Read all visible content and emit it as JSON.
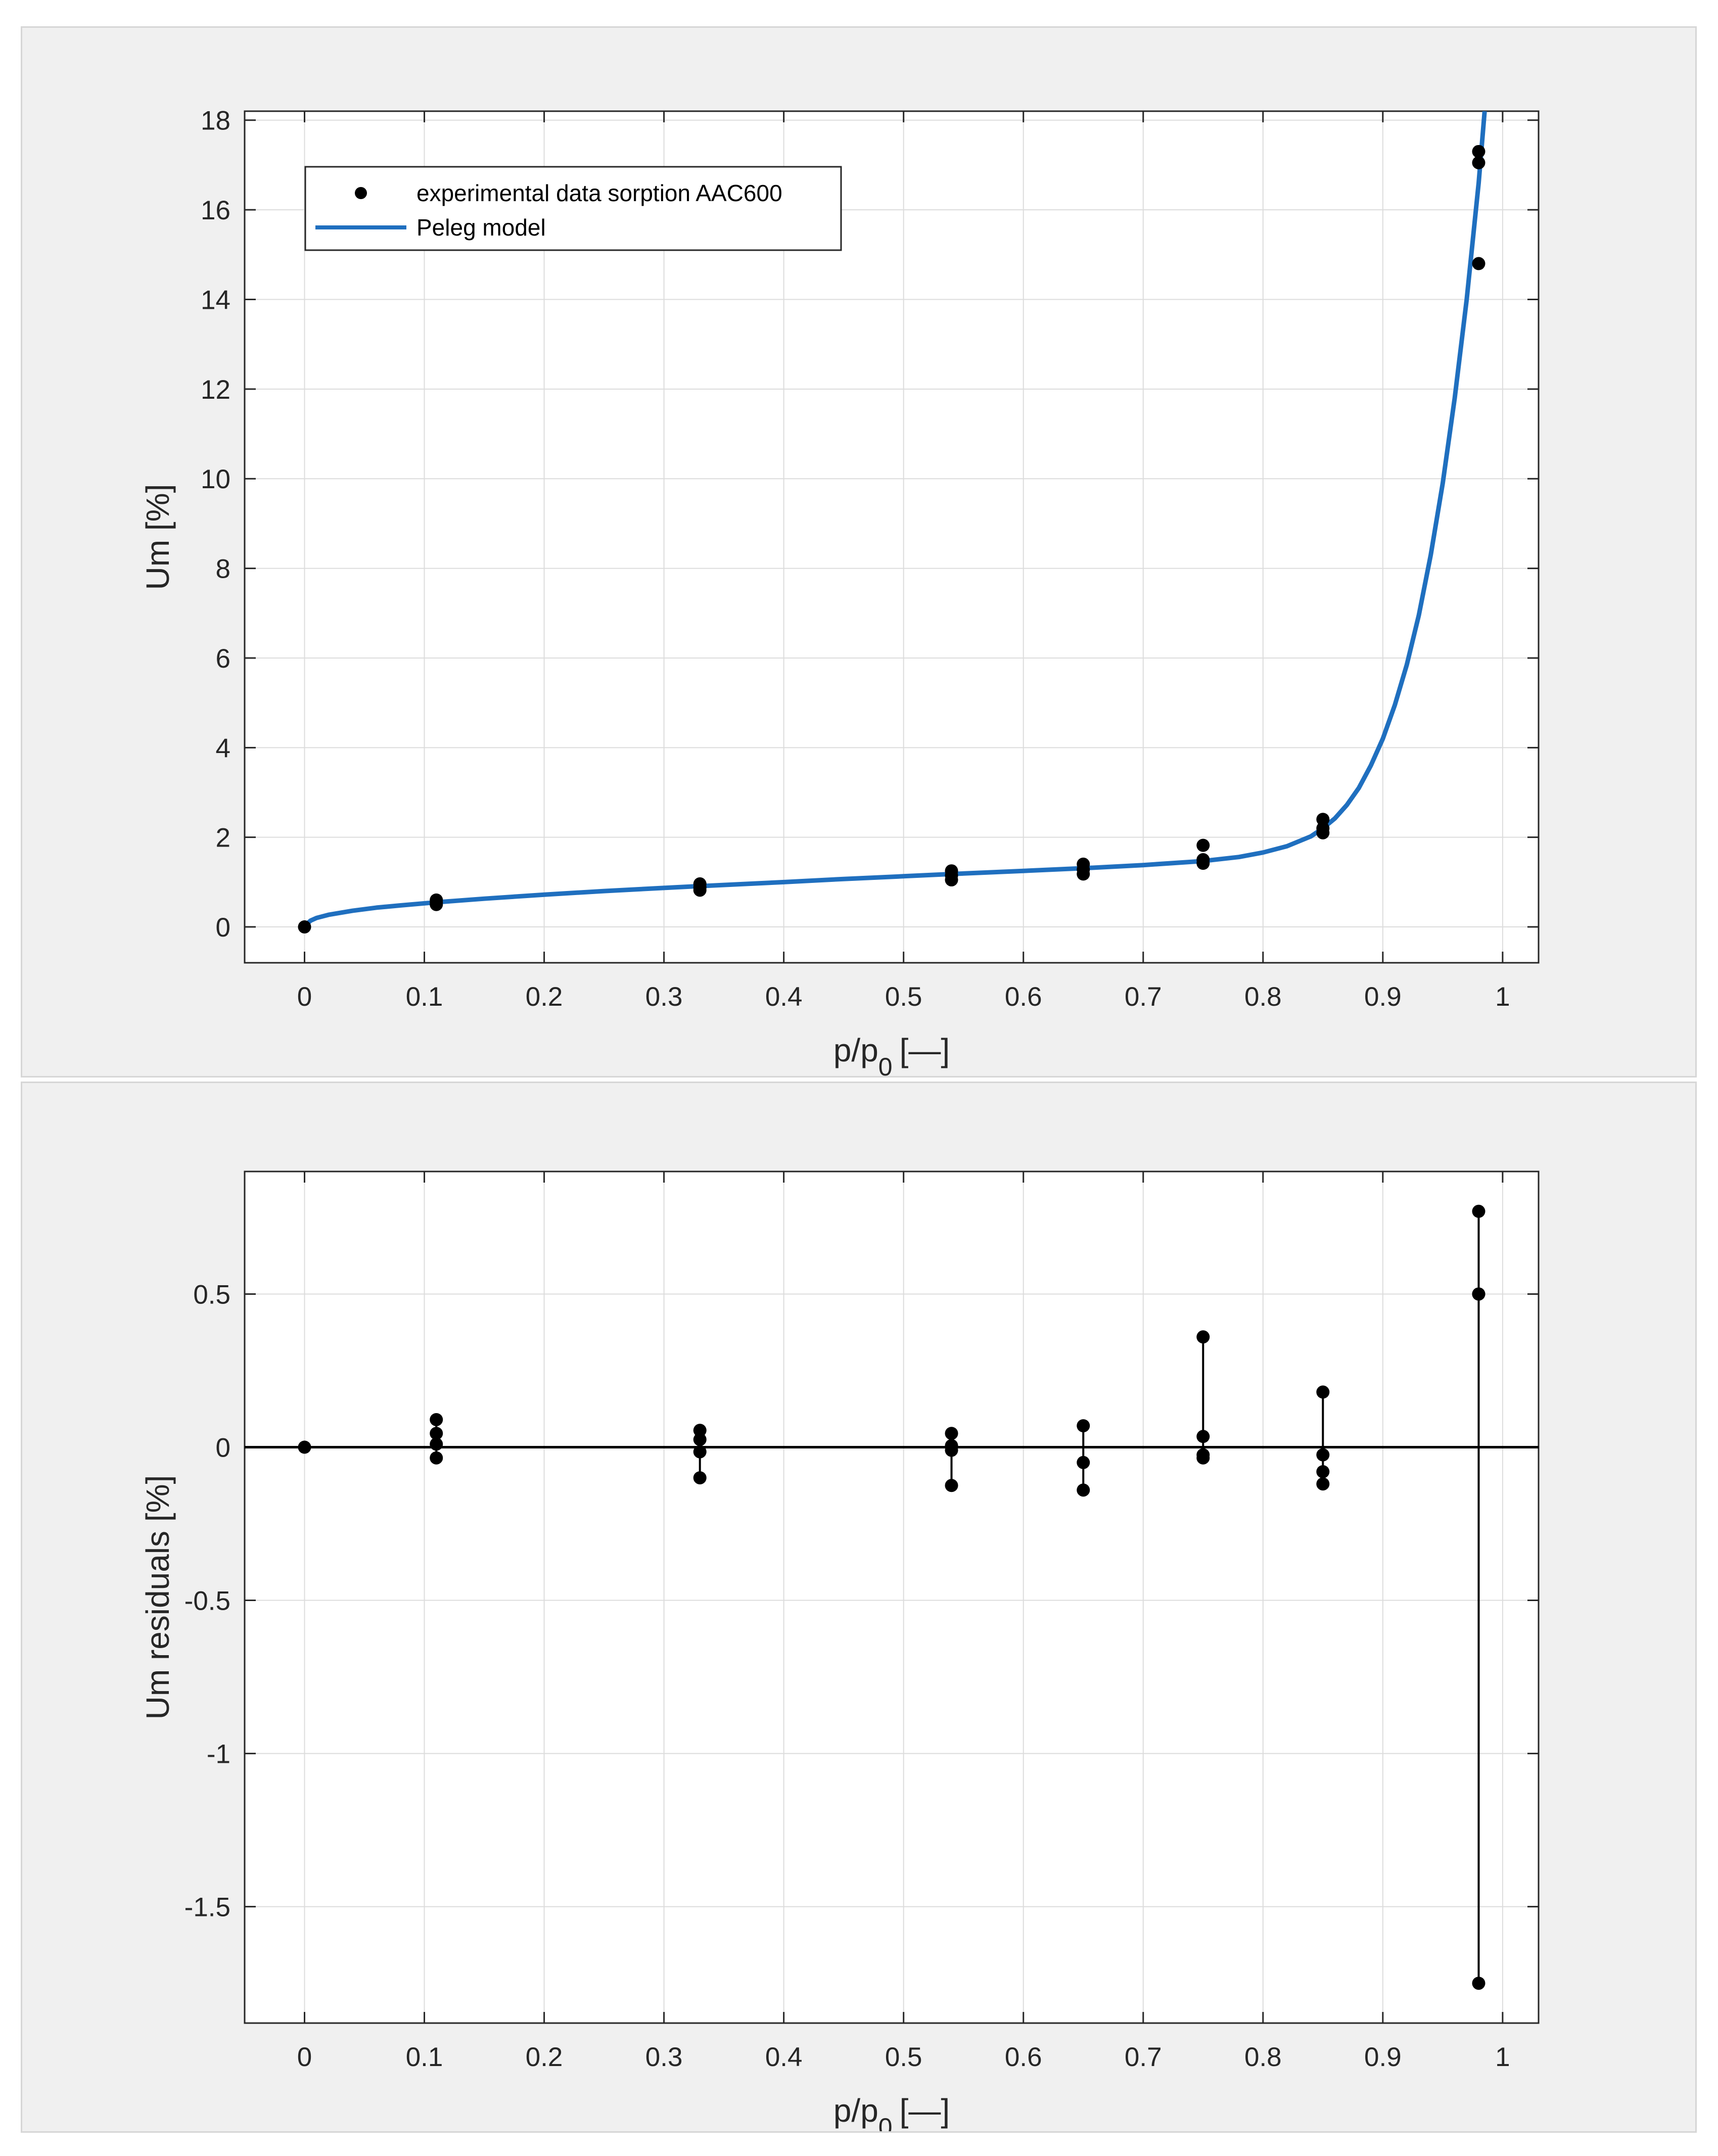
{
  "chart_data": [
    {
      "type": "scatter",
      "xlabel": "p/p",
      "xlabel_sub": "0",
      "xlabel_unit": "[—]",
      "ylabel": "Um [%]",
      "xlim": [
        -0.05,
        1.03
      ],
      "ylim": [
        -0.8,
        18.2
      ],
      "grid": true,
      "xticks": [
        0,
        0.1,
        0.2,
        0.3,
        0.4,
        0.5,
        0.6,
        0.7,
        0.8,
        0.9,
        1
      ],
      "xtick_labels": [
        "0",
        "0.1",
        "0.2",
        "0.3",
        "0.4",
        "0.5",
        "0.6",
        "0.7",
        "0.8",
        "0.9",
        "1"
      ],
      "yticks": [
        0,
        2,
        4,
        6,
        8,
        10,
        12,
        14,
        16,
        18
      ],
      "ytick_labels": [
        "0",
        "2",
        "4",
        "6",
        "8",
        "10",
        "12",
        "14",
        "16",
        "18"
      ],
      "legend": {
        "placement": "top-left",
        "entries": [
          "experimental data sorption AAC600",
          "Peleg model"
        ]
      },
      "series": [
        {
          "name": "experimental data sorption AAC600",
          "kind": "markers",
          "color": "#000000",
          "points": [
            [
              0,
              0
            ],
            [
              0.11,
              0.6
            ],
            [
              0.11,
              0.55
            ],
            [
              0.11,
              0.5
            ],
            [
              0.33,
              0.96
            ],
            [
              0.33,
              0.88
            ],
            [
              0.33,
              0.82
            ],
            [
              0.54,
              1.25
            ],
            [
              0.54,
              1.15
            ],
            [
              0.54,
              1.05
            ],
            [
              0.65,
              1.4
            ],
            [
              0.65,
              1.28
            ],
            [
              0.65,
              1.18
            ],
            [
              0.75,
              1.82
            ],
            [
              0.75,
              1.5
            ],
            [
              0.75,
              1.42
            ],
            [
              0.85,
              2.4
            ],
            [
              0.85,
              2.2
            ],
            [
              0.85,
              2.1
            ],
            [
              0.98,
              17.3
            ],
            [
              0.98,
              17.05
            ],
            [
              0.98,
              14.8
            ]
          ]
        },
        {
          "name": "Peleg model",
          "kind": "line",
          "color": "#1f6fbf",
          "points": [
            [
              0,
              0.02
            ],
            [
              0.005,
              0.14
            ],
            [
              0.01,
              0.2
            ],
            [
              0.02,
              0.27
            ],
            [
              0.04,
              0.36
            ],
            [
              0.06,
              0.43
            ],
            [
              0.08,
              0.48
            ],
            [
              0.11,
              0.55
            ],
            [
              0.15,
              0.63
            ],
            [
              0.2,
              0.72
            ],
            [
              0.25,
              0.8
            ],
            [
              0.3,
              0.87
            ],
            [
              0.33,
              0.91
            ],
            [
              0.4,
              1.0
            ],
            [
              0.45,
              1.07
            ],
            [
              0.5,
              1.13
            ],
            [
              0.54,
              1.18
            ],
            [
              0.6,
              1.25
            ],
            [
              0.65,
              1.31
            ],
            [
              0.7,
              1.38
            ],
            [
              0.75,
              1.47
            ],
            [
              0.78,
              1.56
            ],
            [
              0.8,
              1.66
            ],
            [
              0.82,
              1.8
            ],
            [
              0.84,
              2.02
            ],
            [
              0.85,
              2.2
            ],
            [
              0.86,
              2.42
            ],
            [
              0.87,
              2.72
            ],
            [
              0.88,
              3.1
            ],
            [
              0.89,
              3.6
            ],
            [
              0.9,
              4.2
            ],
            [
              0.91,
              4.95
            ],
            [
              0.92,
              5.85
            ],
            [
              0.93,
              6.95
            ],
            [
              0.94,
              8.3
            ],
            [
              0.95,
              9.9
            ],
            [
              0.96,
              11.8
            ],
            [
              0.97,
              14.0
            ],
            [
              0.98,
              16.6
            ],
            [
              0.985,
              18.2
            ]
          ]
        }
      ]
    },
    {
      "type": "scatter",
      "xlabel": "p/p",
      "xlabel_sub": "0",
      "xlabel_unit": "[—]",
      "ylabel": "Um residuals [%]",
      "xlim": [
        -0.05,
        1.03
      ],
      "ylim": [
        -1.88,
        0.9
      ],
      "grid": true,
      "xticks": [
        0,
        0.1,
        0.2,
        0.3,
        0.4,
        0.5,
        0.6,
        0.7,
        0.8,
        0.9,
        1
      ],
      "xtick_labels": [
        "0",
        "0.1",
        "0.2",
        "0.3",
        "0.4",
        "0.5",
        "0.6",
        "0.7",
        "0.8",
        "0.9",
        "1"
      ],
      "yticks": [
        -1.5,
        -1,
        -0.5,
        0,
        0.5
      ],
      "ytick_labels": [
        "-1.5",
        "-1",
        "-0.5",
        "0",
        "0.5"
      ],
      "zero_line": 0,
      "stems": [
        {
          "x": 0,
          "values": [
            0
          ]
        },
        {
          "x": 0.11,
          "values": [
            0.09,
            0.045,
            0.01,
            -0.035
          ]
        },
        {
          "x": 0.33,
          "values": [
            0.055,
            0.025,
            -0.015,
            -0.1
          ]
        },
        {
          "x": 0.54,
          "values": [
            0.045,
            0.005,
            -0.01,
            -0.125
          ]
        },
        {
          "x": 0.65,
          "values": [
            0.07,
            -0.05,
            -0.14
          ]
        },
        {
          "x": 0.75,
          "values": [
            0.36,
            0.035,
            -0.025,
            -0.035
          ]
        },
        {
          "x": 0.85,
          "values": [
            0.18,
            -0.025,
            -0.08,
            -0.12
          ]
        },
        {
          "x": 0.98,
          "values": [
            0.77,
            0.5,
            0.5,
            -1.75
          ]
        }
      ]
    }
  ]
}
